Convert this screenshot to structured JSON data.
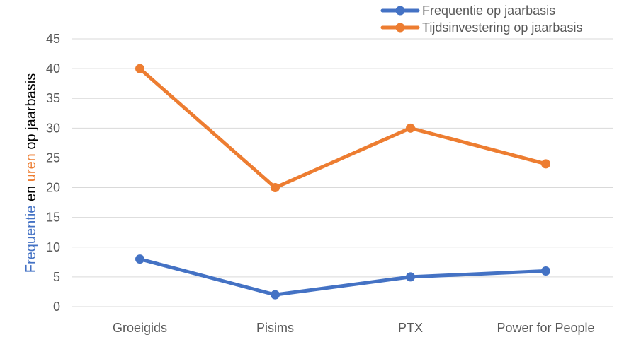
{
  "chart_data": {
    "type": "line",
    "categories": [
      "Groeigids",
      "Pisims",
      "PTX",
      "Power for People"
    ],
    "series": [
      {
        "name": "Frequentie op jaarbasis",
        "values": [
          8,
          2,
          5,
          6
        ],
        "color": "#4472C4"
      },
      {
        "name": "Tijdsinvestering op jaarbasis",
        "values": [
          40,
          20,
          30,
          24
        ],
        "color": "#ED7D31"
      }
    ],
    "ylim": [
      0,
      45
    ],
    "yticks": [
      0,
      5,
      10,
      15,
      20,
      25,
      30,
      35,
      40,
      45
    ],
    "ylabel_parts": [
      {
        "text": "Frequentie",
        "color": "#4472C4"
      },
      {
        "text": " en ",
        "color": "#000000"
      },
      {
        "text": "uren",
        "color": "#ED7D31"
      },
      {
        "text": " op jaarbasis",
        "color": "#000000"
      }
    ],
    "grid": true,
    "legend": "top-right",
    "gridColor": "#d9d9d9",
    "textColor": "#595959"
  }
}
